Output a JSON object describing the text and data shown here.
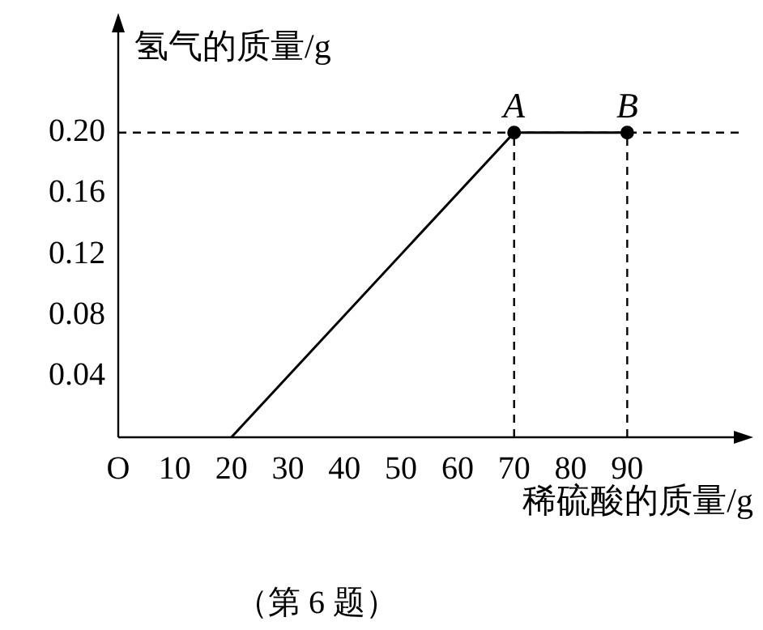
{
  "chart_data": {
    "type": "line",
    "xlabel": "稀硫酸的质量/g",
    "ylabel": "氢气的质量/g",
    "xlim": [
      0,
      110
    ],
    "ylim": [
      0,
      0.27
    ],
    "xticks": [
      {
        "value": 0,
        "label": "O"
      },
      10,
      20,
      30,
      40,
      50,
      60,
      70,
      80,
      90
    ],
    "yticks": [
      0.04,
      0.08,
      0.12,
      0.16,
      {
        "value": 0.2,
        "label": "0.20"
      }
    ],
    "series": [
      {
        "color": "#000000",
        "x": [
          20,
          70,
          90
        ],
        "values": [
          0,
          0.2,
          0.2
        ],
        "marker": "none"
      },
      {
        "type": "scatter",
        "color": "#000000",
        "x": [
          70,
          90
        ],
        "values": [
          0.2,
          0.2
        ],
        "marker": "circle"
      }
    ],
    "ref_lines": [
      {
        "axis": "y",
        "value": 0.2,
        "line_style": "dashed"
      },
      {
        "axis": "x",
        "value": 70,
        "line_style": "dashed"
      },
      {
        "axis": "x",
        "value": 90,
        "line_style": "dashed"
      }
    ],
    "annotations": [
      {
        "text": "A",
        "x": 70,
        "y": 0.2
      },
      {
        "text": "B",
        "x": 90,
        "y": 0.2
      },
      "（第 6 题）"
    ],
    "grid": false,
    "legend": false
  }
}
